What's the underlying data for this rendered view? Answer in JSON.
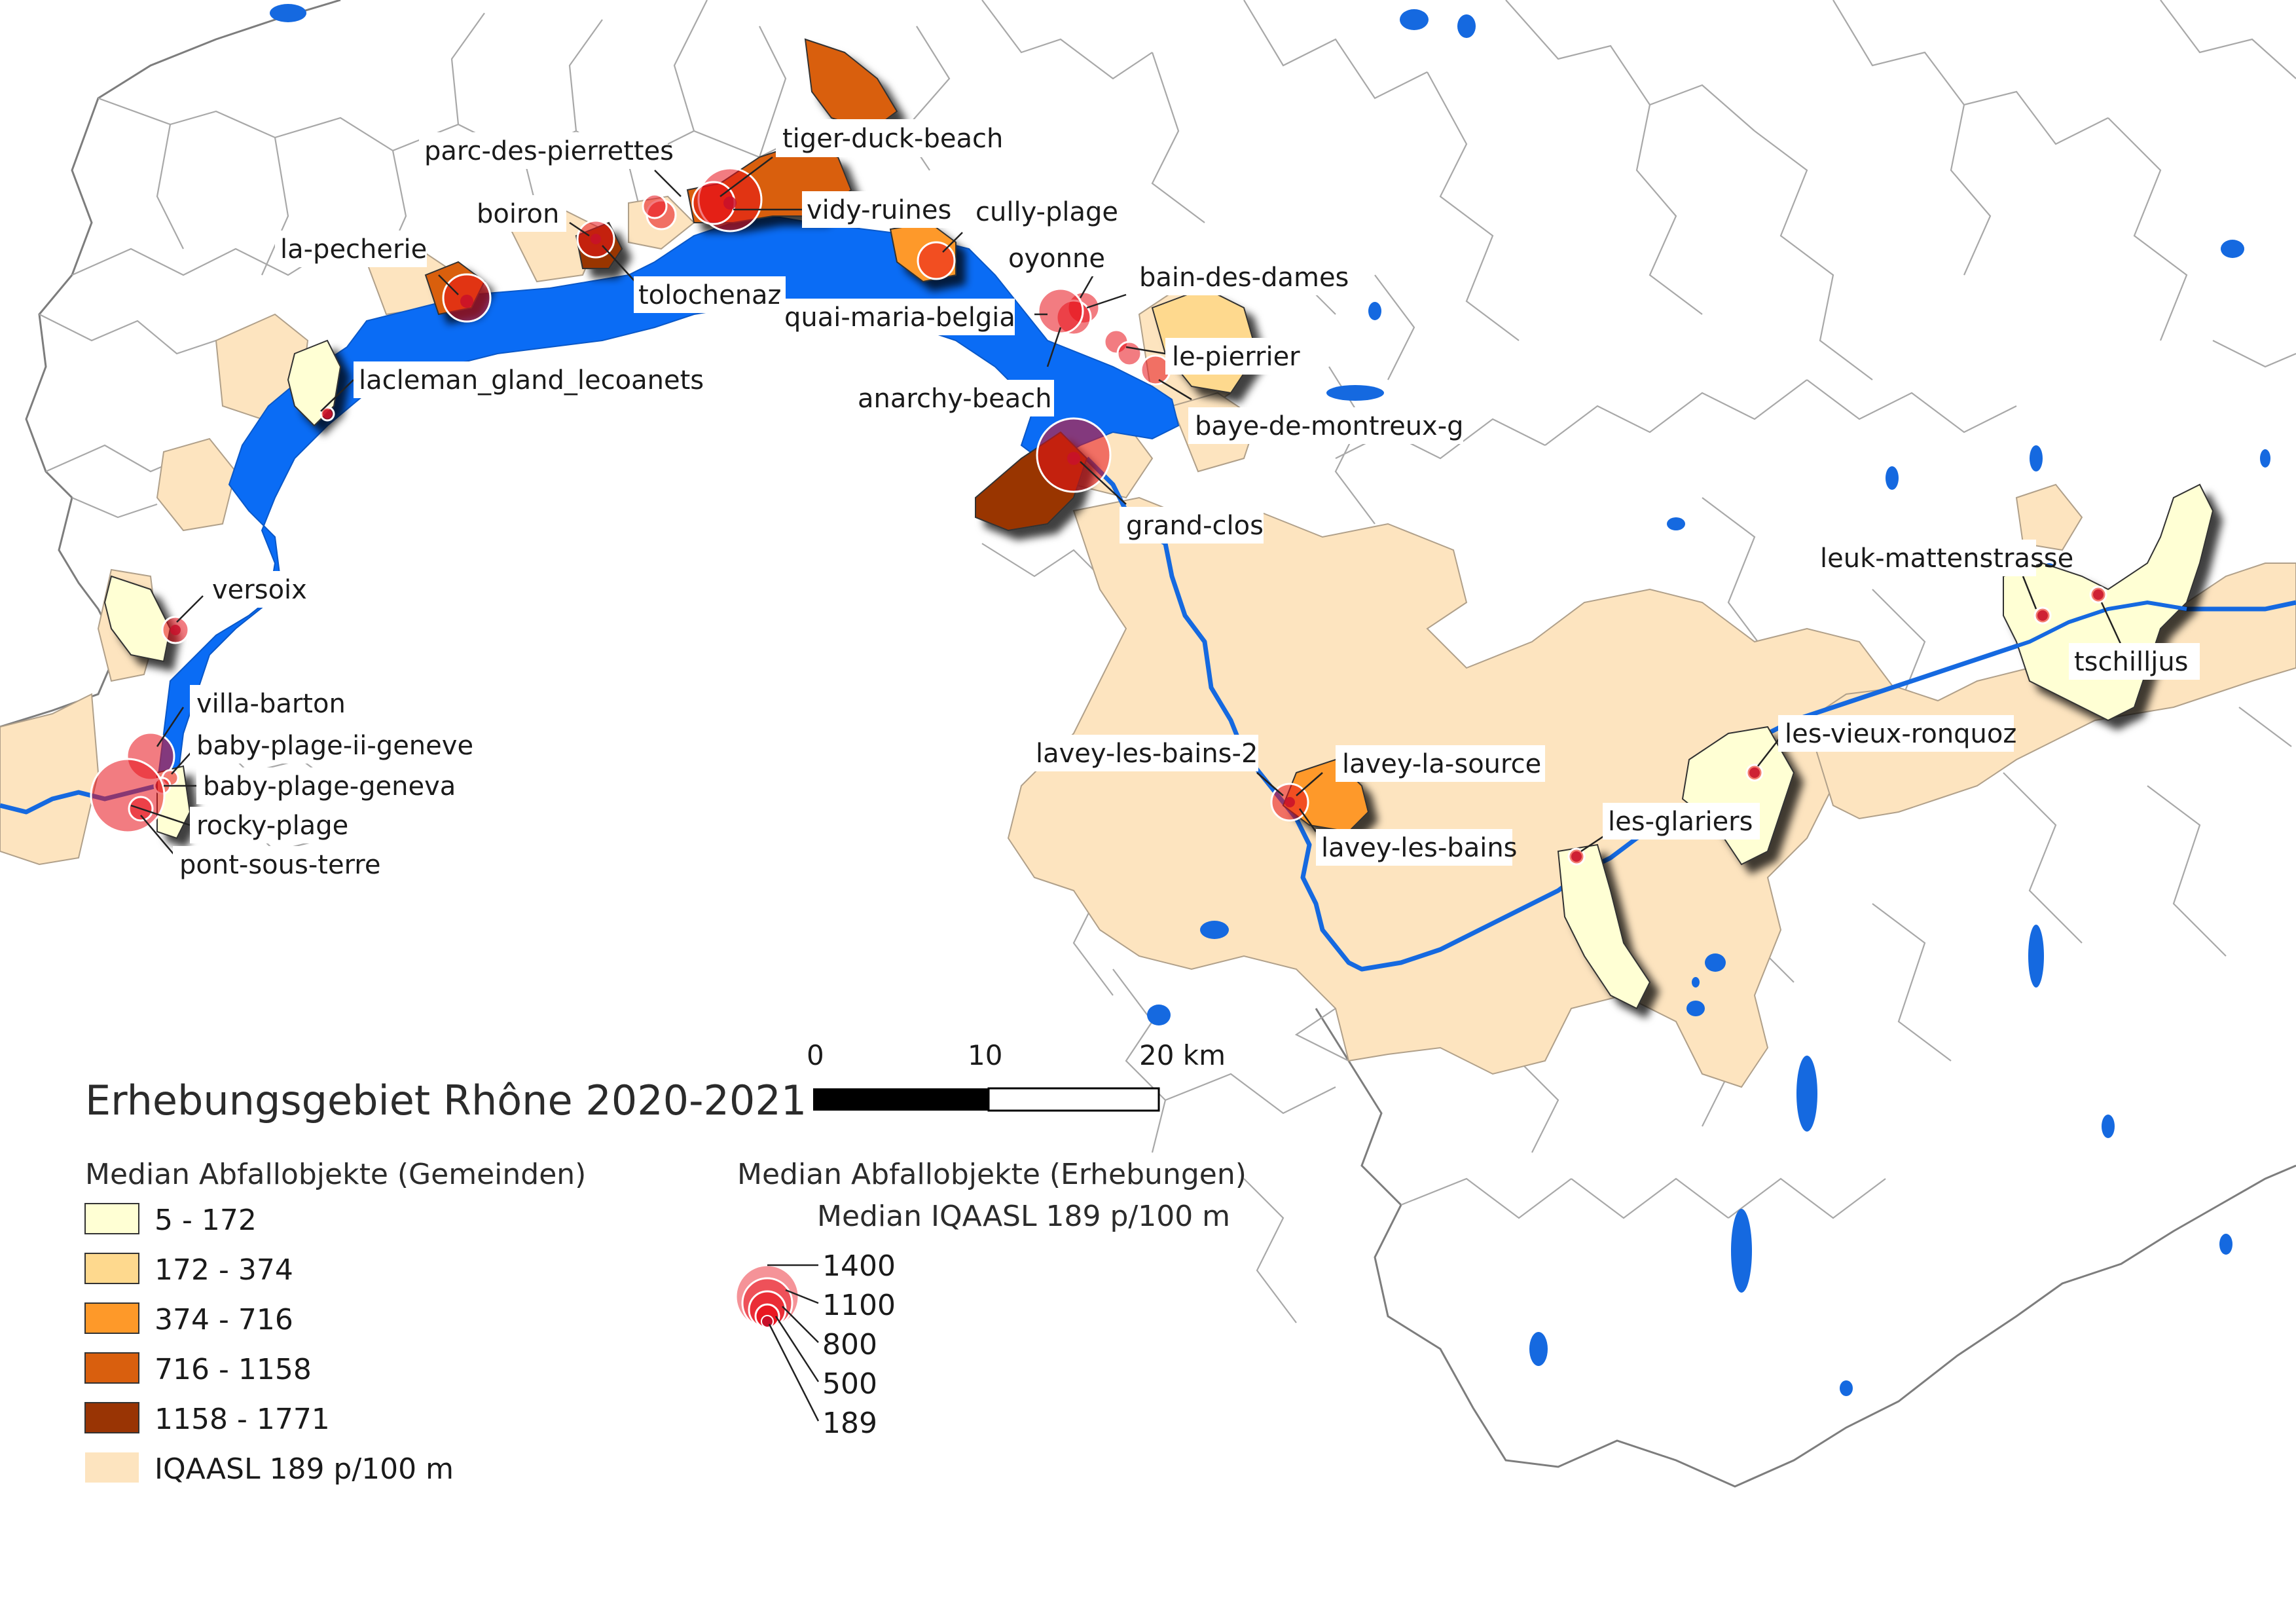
{
  "legend": {
    "title": "Erhebungsgebiet Rhône 2020-2021",
    "gemeinden_heading": "Median Abfallobjekte (Gemeinden)",
    "classes": [
      {
        "label": "5 - 172",
        "color": "#ffffd4"
      },
      {
        "label": "172 - 374",
        "color": "#fed98e"
      },
      {
        "label": "374 - 716",
        "color": "#fe9929"
      },
      {
        "label": "716 - 1158",
        "color": "#d95f0e"
      },
      {
        "label": "1158 - 1771",
        "color": "#993404"
      },
      {
        "label": "IQAASL 189 p/100 m",
        "color": "#fde4bf"
      }
    ],
    "erhebungen_heading": "Median Abfallobjekte (Erhebungen)",
    "erhebungen_sub": "Median IQAASL 189 p/100 m",
    "sizes": [
      "1400",
      "1100",
      "800",
      "500",
      "189"
    ]
  },
  "scale": {
    "labels": [
      "0",
      "10",
      "20 km"
    ]
  },
  "colors": {
    "lake": "#0a6cf5",
    "river": "#1569e0",
    "marker": "#e8101a",
    "boundary": "#9a9a9a"
  },
  "sites": [
    {
      "name": "tiger-duck-beach",
      "value": 1400
    },
    {
      "name": "parc-des-pierrettes",
      "value": 1100
    },
    {
      "name": "vidy-ruines",
      "value": 1100
    },
    {
      "name": "boiron",
      "value": 500
    },
    {
      "name": "cully-plage",
      "value": 500
    },
    {
      "name": "la-pecherie",
      "value": 700
    },
    {
      "name": "tolochenaz",
      "value": 500
    },
    {
      "name": "oyonne",
      "value": 400
    },
    {
      "name": "bain-des-dames",
      "value": 600
    },
    {
      "name": "quai-maria-belgia",
      "value": 800
    },
    {
      "name": "le-pierrier",
      "value": 300
    },
    {
      "name": "anarchy-beach",
      "value": 300
    },
    {
      "name": "baye-de-montreux-g",
      "value": 400
    },
    {
      "name": "lacleman_gland_lecoanets",
      "value": 189
    },
    {
      "name": "grand-clos",
      "value": 1400
    },
    {
      "name": "versoix",
      "value": 300
    },
    {
      "name": "villa-barton",
      "value": 800
    },
    {
      "name": "baby-plage-ii-geneve",
      "value": 200
    },
    {
      "name": "baby-plage-geneva",
      "value": 200
    },
    {
      "name": "rocky-plage",
      "value": 1400
    },
    {
      "name": "pont-sous-terre",
      "value": 300
    },
    {
      "name": "lavey-les-bains-2",
      "value": 500
    },
    {
      "name": "lavey-la-source",
      "value": 189
    },
    {
      "name": "lavey-les-bains",
      "value": 189
    },
    {
      "name": "les-glariers",
      "value": 189
    },
    {
      "name": "les-vieux-ronquoz",
      "value": 189
    },
    {
      "name": "leuk-mattenstrasse",
      "value": 189
    },
    {
      "name": "tschilljus",
      "value": 189
    }
  ]
}
